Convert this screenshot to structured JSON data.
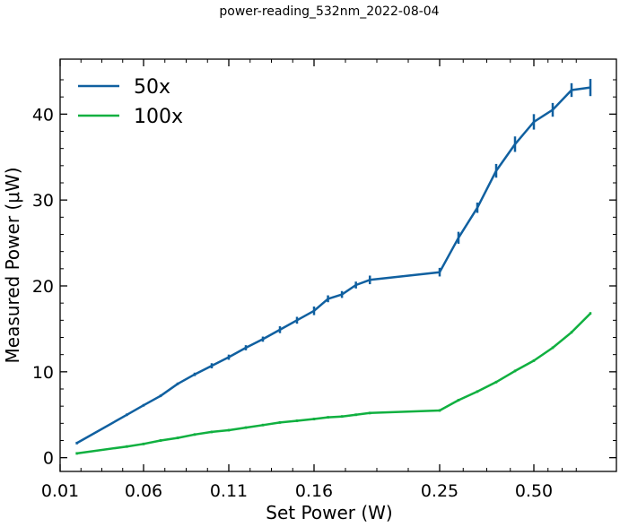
{
  "chart_data": {
    "type": "line",
    "title": "power-reading_532nm_2022-08-04",
    "xlabel": "Set Power (W)",
    "ylabel": "Measured Power (μW)",
    "x_ticks": [
      "0.01",
      "0.06",
      "0.11",
      "0.16",
      "0.25",
      "0.50"
    ],
    "y_ticks": [
      0,
      10,
      20,
      30,
      40
    ],
    "ylim": [
      -1.6,
      46.4
    ],
    "grid": false,
    "legend": "top-left",
    "series": [
      {
        "name": "50x",
        "color": "#1060a0",
        "x": [
          0.02,
          0.05,
          0.06,
          0.07,
          0.08,
          0.09,
          0.1,
          0.11,
          0.12,
          0.13,
          0.14,
          0.15,
          0.16,
          0.17,
          0.18,
          0.19,
          0.2,
          0.25,
          0.3,
          0.35,
          0.4,
          0.45,
          0.5,
          0.55,
          0.6,
          0.65
        ],
        "y": [
          1.7,
          5.0,
          6.1,
          7.2,
          8.6,
          9.7,
          10.7,
          11.7,
          12.8,
          13.8,
          14.9,
          16.0,
          17.1,
          18.5,
          19.0,
          20.1,
          20.7,
          21.6,
          25.6,
          29.1,
          33.4,
          36.5,
          39.1,
          40.5,
          42.8,
          43.1
        ],
        "err": [
          0,
          0,
          0,
          0,
          0,
          0.2,
          0.3,
          0.3,
          0.3,
          0.3,
          0.4,
          0.4,
          0.5,
          0.4,
          0.4,
          0.4,
          0.5,
          0.5,
          0.7,
          0.6,
          0.8,
          0.9,
          0.9,
          0.8,
          0.8,
          1.0
        ]
      },
      {
        "name": "100x",
        "color": "#10b040",
        "x": [
          0.02,
          0.05,
          0.06,
          0.07,
          0.08,
          0.09,
          0.1,
          0.11,
          0.12,
          0.13,
          0.14,
          0.15,
          0.16,
          0.17,
          0.18,
          0.19,
          0.2,
          0.25,
          0.3,
          0.35,
          0.4,
          0.45,
          0.5,
          0.55,
          0.6,
          0.65
        ],
        "y": [
          0.5,
          1.3,
          1.6,
          2.0,
          2.3,
          2.7,
          3.0,
          3.2,
          3.5,
          3.8,
          4.1,
          4.3,
          4.5,
          4.7,
          4.8,
          5.0,
          5.2,
          5.5,
          6.7,
          7.7,
          8.8,
          10.1,
          11.3,
          12.8,
          14.6,
          16.8
        ]
      }
    ]
  }
}
